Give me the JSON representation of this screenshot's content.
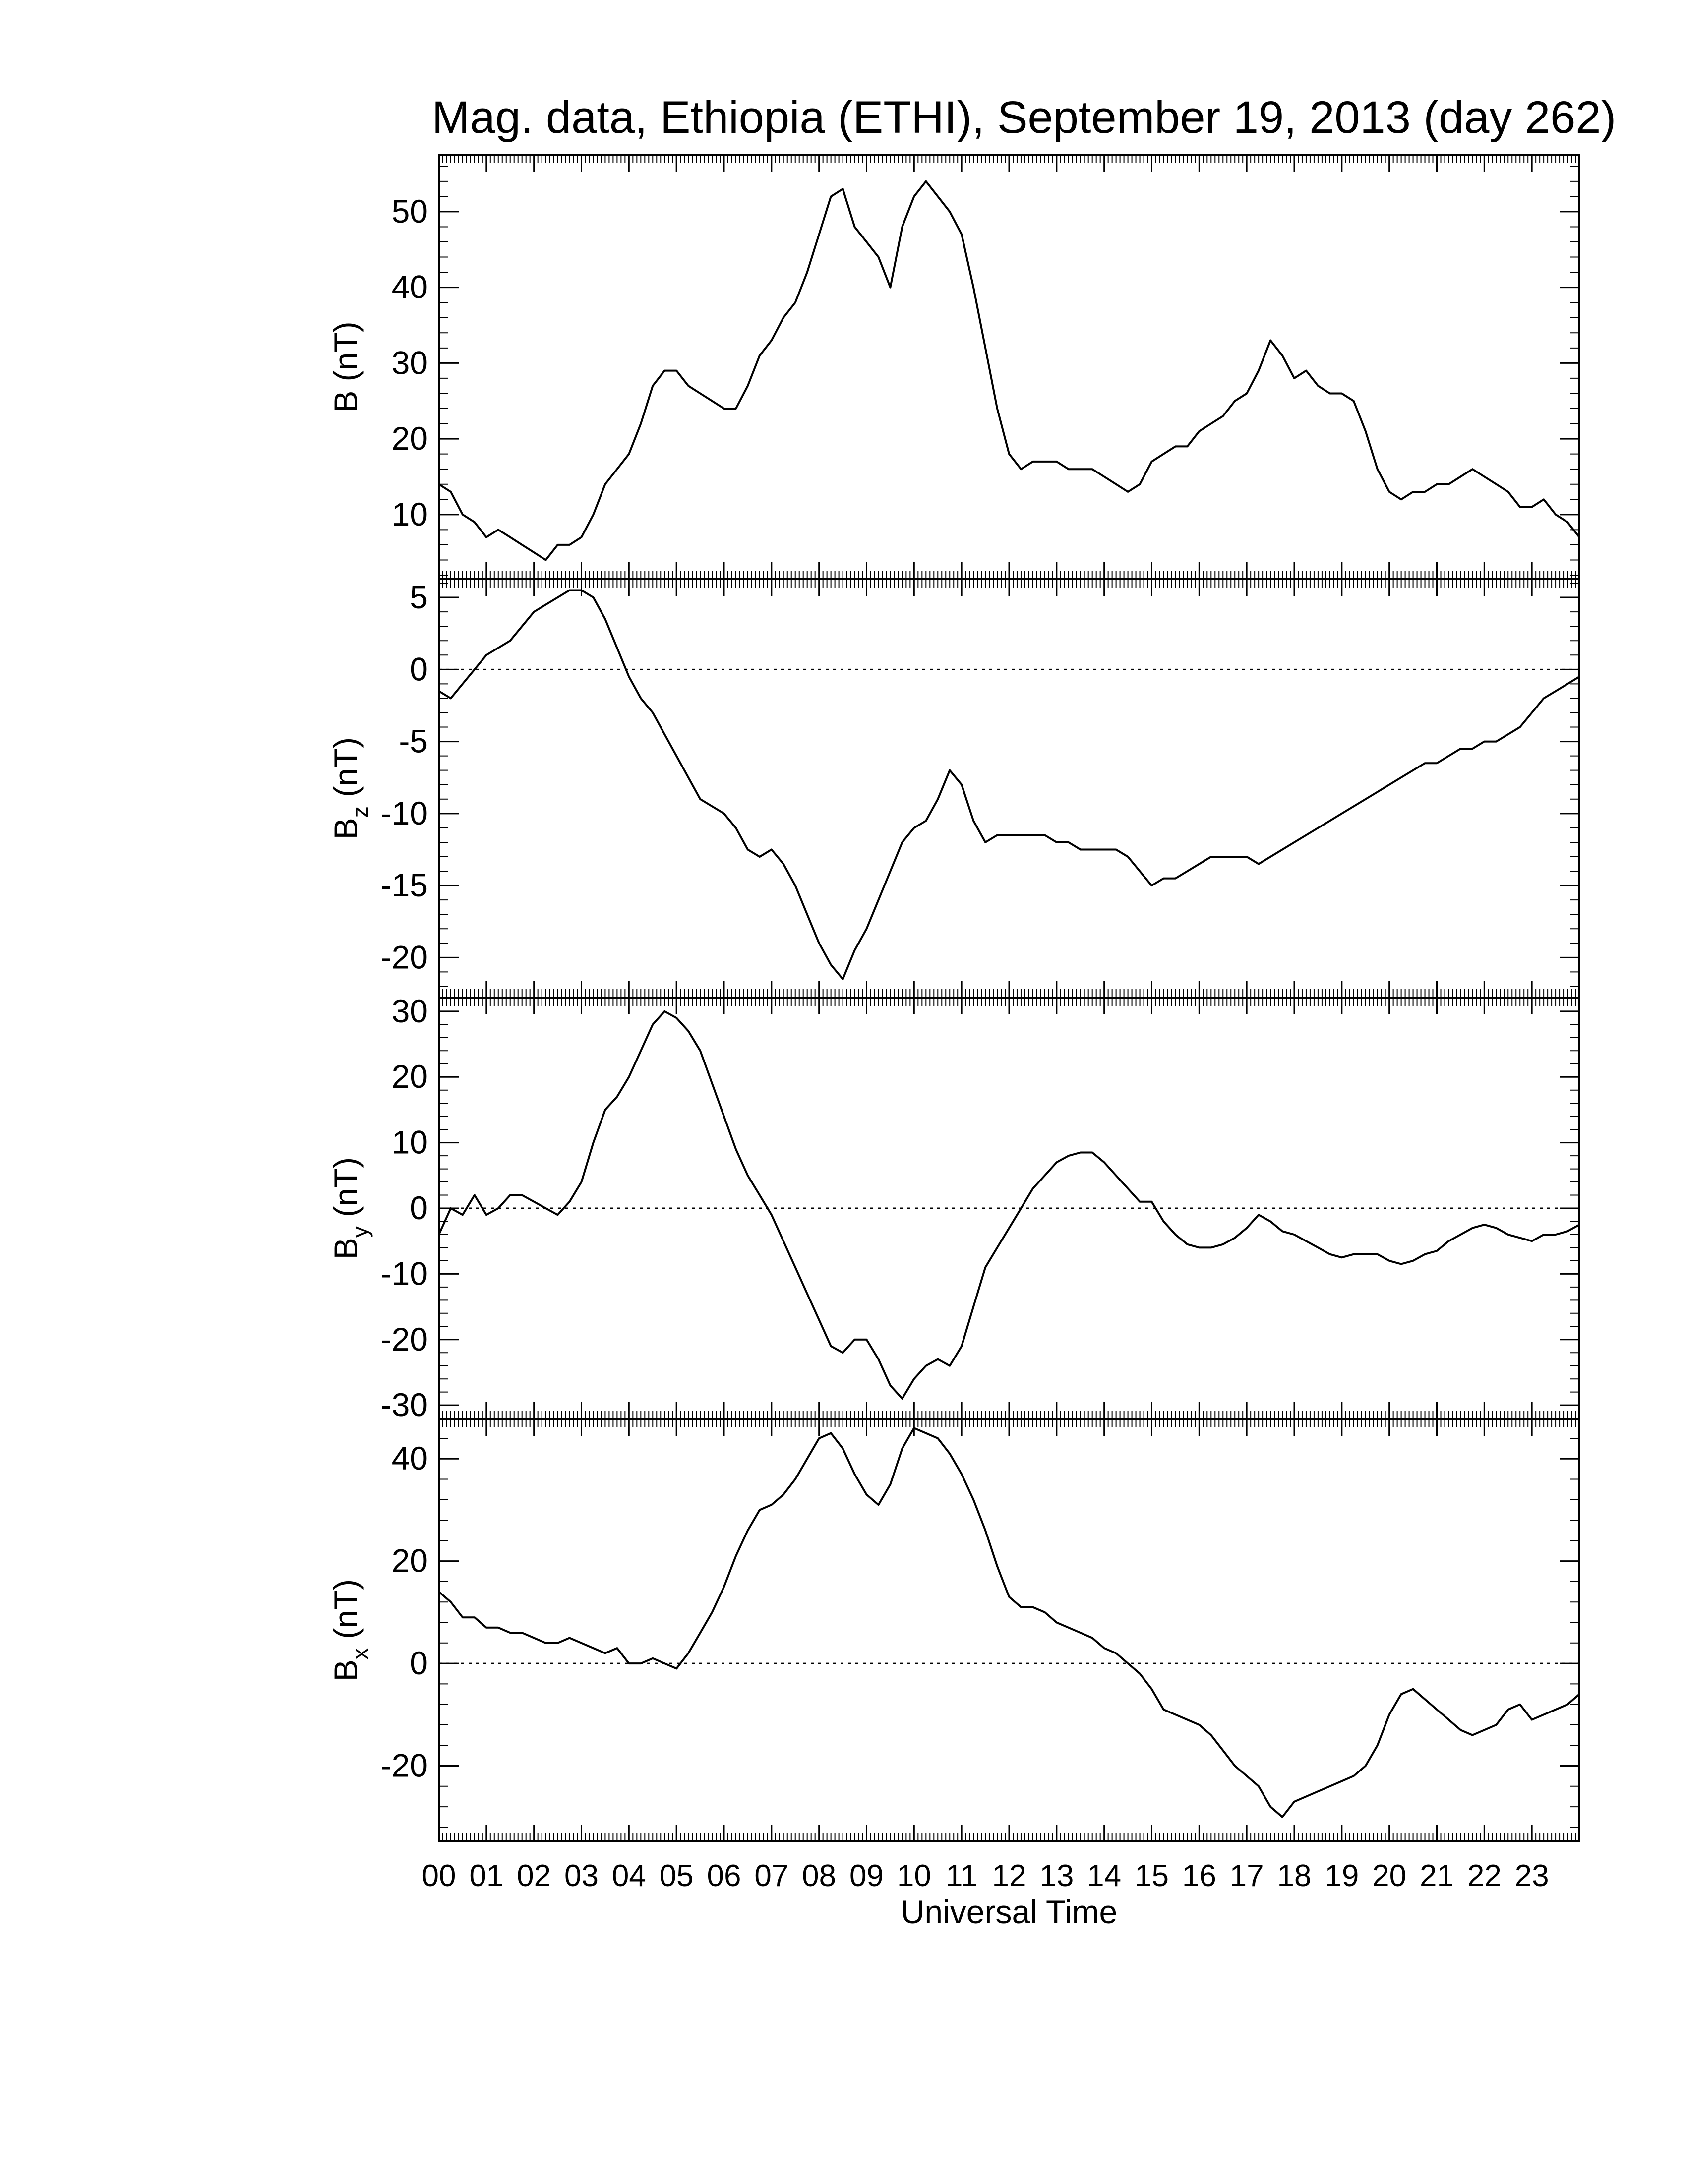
{
  "chart_data": [
    {
      "type": "line",
      "title": "Mag. data, Ethiopia (ETHI), September 19, 2013 (day 262)",
      "ylabel": "B (nT)",
      "ylim": [
        2,
        57
      ],
      "yticks": [
        10,
        20,
        30,
        40,
        50
      ],
      "zero_line": false,
      "series": [
        {
          "x": [
            0.0,
            0.25,
            0.5,
            0.75,
            1.0,
            1.25,
            1.5,
            1.75,
            2.0,
            2.25,
            2.5,
            2.75,
            3.0,
            3.25,
            3.5,
            3.75,
            4.0,
            4.25,
            4.5,
            4.75,
            5.0,
            5.25,
            5.5,
            5.75,
            6.0,
            6.25,
            6.5,
            6.75,
            7.0,
            7.25,
            7.5,
            7.75,
            8.0,
            8.25,
            8.5,
            8.75,
            9.0,
            9.25,
            9.5,
            9.75,
            10.0,
            10.25,
            10.5,
            10.75,
            11.0,
            11.25,
            11.5,
            11.75,
            12.0,
            12.25,
            12.5,
            12.75,
            13.0,
            13.25,
            13.5,
            13.75,
            14.0,
            14.25,
            14.5,
            14.75,
            15.0,
            15.25,
            15.5,
            15.75,
            16.0,
            16.25,
            16.5,
            16.75,
            17.0,
            17.25,
            17.5,
            17.75,
            18.0,
            18.25,
            18.5,
            18.75,
            19.0,
            19.25,
            19.5,
            19.75,
            20.0,
            20.25,
            20.5,
            20.75,
            21.0,
            21.25,
            21.5,
            21.75,
            22.0,
            22.25,
            22.5,
            22.75,
            23.0,
            23.25,
            23.5,
            23.75,
            24.0
          ],
          "y": [
            14,
            13,
            10,
            9,
            7,
            8,
            7,
            6,
            5,
            4,
            6,
            6,
            7,
            10,
            14,
            16,
            18,
            22,
            27,
            29,
            29,
            27,
            26,
            25,
            24,
            24,
            27,
            31,
            33,
            36,
            38,
            42,
            47,
            52,
            53,
            48,
            46,
            44,
            40,
            48,
            52,
            54,
            52,
            50,
            47,
            40,
            32,
            24,
            18,
            16,
            17,
            17,
            17,
            16,
            16,
            16,
            15,
            14,
            13,
            14,
            17,
            18,
            19,
            19,
            21,
            22,
            23,
            25,
            26,
            29,
            33,
            31,
            28,
            29,
            27,
            26,
            26,
            25,
            21,
            16,
            13,
            12,
            13,
            13,
            14,
            14,
            15,
            16,
            15,
            14,
            13,
            11,
            11,
            12,
            10,
            9,
            7
          ]
        }
      ]
    },
    {
      "type": "line",
      "ylabel": "B",
      "ylabel_subscript": "z",
      "ylabel_unit": "(nT)",
      "ylim": [
        -22.5,
        6.0
      ],
      "yticks": [
        5,
        0,
        -5,
        -10,
        -15,
        -20
      ],
      "zero_line": true,
      "series": [
        {
          "x": [
            0.0,
            0.25,
            0.5,
            0.75,
            1.0,
            1.25,
            1.5,
            1.75,
            2.0,
            2.25,
            2.5,
            2.75,
            3.0,
            3.25,
            3.5,
            3.75,
            4.0,
            4.25,
            4.5,
            4.75,
            5.0,
            5.25,
            5.5,
            5.75,
            6.0,
            6.25,
            6.5,
            6.75,
            7.0,
            7.25,
            7.5,
            7.75,
            8.0,
            8.25,
            8.5,
            8.75,
            9.0,
            9.25,
            9.5,
            9.75,
            10.0,
            10.25,
            10.5,
            10.75,
            11.0,
            11.25,
            11.5,
            11.75,
            12.0,
            12.25,
            12.5,
            12.75,
            13.0,
            13.25,
            13.5,
            13.75,
            14.0,
            14.25,
            14.5,
            14.75,
            15.0,
            15.25,
            15.5,
            15.75,
            16.0,
            16.25,
            16.5,
            16.75,
            17.0,
            17.25,
            17.5,
            17.75,
            18.0,
            18.25,
            18.5,
            18.75,
            19.0,
            19.25,
            19.5,
            19.75,
            20.0,
            20.25,
            20.5,
            20.75,
            21.0,
            21.25,
            21.5,
            21.75,
            22.0,
            22.25,
            22.5,
            22.75,
            23.0,
            23.25,
            23.5,
            23.75,
            24.0
          ],
          "y": [
            -1.5,
            -2,
            -1,
            0,
            1,
            1.5,
            2,
            3,
            4,
            4.5,
            5,
            5.5,
            5.5,
            5,
            3.5,
            1.5,
            -0.5,
            -2,
            -3,
            -4.5,
            -6,
            -7.5,
            -9,
            -9.5,
            -10,
            -11,
            -12.5,
            -13,
            -12.5,
            -13.5,
            -15,
            -17,
            -19,
            -20.5,
            -21.5,
            -19.5,
            -18,
            -16,
            -14,
            -12,
            -11,
            -10.5,
            -9,
            -7,
            -8,
            -10.5,
            -12,
            -11.5,
            -11.5,
            -11.5,
            -11.5,
            -11.5,
            -12,
            -12,
            -12.5,
            -12.5,
            -12.5,
            -12.5,
            -13,
            -14,
            -15,
            -14.5,
            -14.5,
            -14,
            -13.5,
            -13,
            -13,
            -13,
            -13,
            -13.5,
            -13,
            -12.5,
            -12,
            -11.5,
            -11,
            -10.5,
            -10,
            -9.5,
            -9,
            -8.5,
            -8,
            -7.5,
            -7,
            -6.5,
            -6.5,
            -6,
            -5.5,
            -5.5,
            -5,
            -5,
            -4.5,
            -4,
            -3,
            -2,
            -1.5,
            -1,
            -0.5
          ]
        }
      ]
    },
    {
      "type": "line",
      "ylabel": "B",
      "ylabel_subscript": "y",
      "ylabel_unit": "(nT)",
      "ylim": [
        -31.5,
        31.5
      ],
      "yticks": [
        30,
        20,
        10,
        0,
        -10,
        -20,
        -30
      ],
      "zero_line": true,
      "series": [
        {
          "x": [
            0.0,
            0.25,
            0.5,
            0.75,
            1.0,
            1.25,
            1.5,
            1.75,
            2.0,
            2.25,
            2.5,
            2.75,
            3.0,
            3.25,
            3.5,
            3.75,
            4.0,
            4.25,
            4.5,
            4.75,
            5.0,
            5.25,
            5.5,
            5.75,
            6.0,
            6.25,
            6.5,
            6.75,
            7.0,
            7.25,
            7.5,
            7.75,
            8.0,
            8.25,
            8.5,
            8.75,
            9.0,
            9.25,
            9.5,
            9.75,
            10.0,
            10.25,
            10.5,
            10.75,
            11.0,
            11.25,
            11.5,
            11.75,
            12.0,
            12.25,
            12.5,
            12.75,
            13.0,
            13.25,
            13.5,
            13.75,
            14.0,
            14.25,
            14.5,
            14.75,
            15.0,
            15.25,
            15.5,
            15.75,
            16.0,
            16.25,
            16.5,
            16.75,
            17.0,
            17.25,
            17.5,
            17.75,
            18.0,
            18.25,
            18.5,
            18.75,
            19.0,
            19.25,
            19.5,
            19.75,
            20.0,
            20.25,
            20.5,
            20.75,
            21.0,
            21.25,
            21.5,
            21.75,
            22.0,
            22.25,
            22.5,
            22.75,
            23.0,
            23.25,
            23.5,
            23.75,
            24.0
          ],
          "y": [
            -4,
            0,
            -1,
            2,
            -1,
            0,
            2,
            2,
            1,
            0,
            -1,
            1,
            4,
            10,
            15,
            17,
            20,
            24,
            28,
            30,
            29,
            27,
            24,
            19,
            14,
            9,
            5,
            2,
            -1,
            -5,
            -9,
            -13,
            -17,
            -21,
            -22,
            -20,
            -20,
            -23,
            -27,
            -29,
            -26,
            -24,
            -23,
            -24,
            -21,
            -15,
            -9,
            -6,
            -3,
            0,
            3,
            5,
            7,
            8,
            8.5,
            8.5,
            7,
            5,
            3,
            1,
            1,
            -2,
            -4,
            -5.5,
            -6,
            -6,
            -5.5,
            -4.5,
            -3,
            -1,
            -2,
            -3.5,
            -4,
            -5,
            -6,
            -7,
            -7.5,
            -7,
            -7,
            -7,
            -8,
            -8.5,
            -8,
            -7,
            -6.5,
            -5,
            -4,
            -3,
            -2.5,
            -3,
            -4,
            -4.5,
            -5,
            -4,
            -4,
            -3.5,
            -2.5
          ]
        }
      ]
    },
    {
      "type": "line",
      "ylabel": "B",
      "ylabel_subscript": "x",
      "ylabel_unit": "(nT)",
      "xlabel": "Universal Time",
      "ylim": [
        -34,
        47
      ],
      "yticks": [
        40,
        20,
        0,
        -20
      ],
      "zero_line": true,
      "categories": [
        "00",
        "01",
        "02",
        "03",
        "04",
        "05",
        "06",
        "07",
        "08",
        "09",
        "10",
        "11",
        "12",
        "13",
        "14",
        "15",
        "16",
        "17",
        "18",
        "19",
        "20",
        "21",
        "22",
        "23"
      ],
      "xlim": [
        0,
        24
      ],
      "series": [
        {
          "x": [
            0.0,
            0.25,
            0.5,
            0.75,
            1.0,
            1.25,
            1.5,
            1.75,
            2.0,
            2.25,
            2.5,
            2.75,
            3.0,
            3.25,
            3.5,
            3.75,
            4.0,
            4.25,
            4.5,
            4.75,
            5.0,
            5.25,
            5.5,
            5.75,
            6.0,
            6.25,
            6.5,
            6.75,
            7.0,
            7.25,
            7.5,
            7.75,
            8.0,
            8.25,
            8.5,
            8.75,
            9.0,
            9.25,
            9.5,
            9.75,
            10.0,
            10.25,
            10.5,
            10.75,
            11.0,
            11.25,
            11.5,
            11.75,
            12.0,
            12.25,
            12.5,
            12.75,
            13.0,
            13.25,
            13.5,
            13.75,
            14.0,
            14.25,
            14.5,
            14.75,
            15.0,
            15.25,
            15.5,
            15.75,
            16.0,
            16.25,
            16.5,
            16.75,
            17.0,
            17.25,
            17.5,
            17.75,
            18.0,
            18.25,
            18.5,
            18.75,
            19.0,
            19.25,
            19.5,
            19.75,
            20.0,
            20.25,
            20.5,
            20.75,
            21.0,
            21.25,
            21.5,
            21.75,
            22.0,
            22.25,
            22.5,
            22.75,
            23.0,
            23.25,
            23.5,
            23.75,
            24.0
          ],
          "y": [
            14,
            12,
            9,
            9,
            7,
            7,
            6,
            6,
            5,
            4,
            4,
            5,
            4,
            3,
            2,
            3,
            0,
            0,
            1,
            0,
            -1,
            2,
            6,
            10,
            15,
            21,
            26,
            30,
            31,
            33,
            36,
            40,
            44,
            45,
            42,
            37,
            33,
            31,
            35,
            42,
            46,
            45,
            44,
            41,
            37,
            32,
            26,
            19,
            13,
            11,
            11,
            10,
            8,
            7,
            6,
            5,
            3,
            2,
            0,
            -2,
            -5,
            -9,
            -10,
            -11,
            -12,
            -14,
            -17,
            -20,
            -22,
            -24,
            -28,
            -30,
            -27,
            -26,
            -25,
            -24,
            -23,
            -22,
            -20,
            -16,
            -10,
            -6,
            -5,
            -7,
            -9,
            -11,
            -13,
            -14,
            -13,
            -12,
            -9,
            -8,
            -11,
            -10,
            -9,
            -8,
            -6
          ]
        }
      ]
    }
  ]
}
